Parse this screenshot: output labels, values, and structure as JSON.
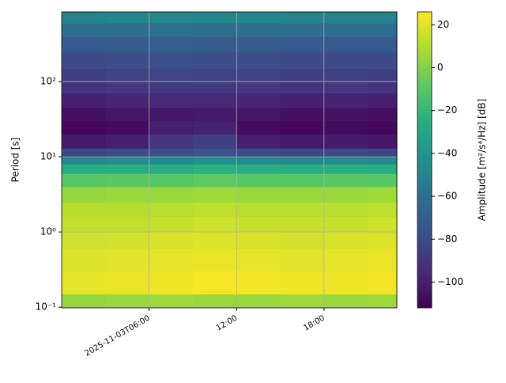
{
  "chart_data": {
    "type": "heatmap",
    "colormap": "viridis",
    "log_y": true,
    "grid": true,
    "ylabel": "Period [s]",
    "colorbar_label": "Amplitude [m²/s⁴/Hz] [dB]",
    "xlim": [
      0,
      23
    ],
    "xticks": [
      {
        "value": 6,
        "label": "2025-11-03T06:00"
      },
      {
        "value": 12,
        "label": "12:00"
      },
      {
        "value": 18,
        "label": "18:00"
      }
    ],
    "ylim": [
      0.098,
      845
    ],
    "yticks": [
      {
        "value": 0.1,
        "label": "10⁻¹"
      },
      {
        "value": 1,
        "label": "10⁰"
      },
      {
        "value": 10,
        "label": "10¹"
      },
      {
        "value": 100,
        "label": "10²"
      }
    ],
    "clim": [
      -112,
      26
    ],
    "cticks": [
      20,
      0,
      {
        "value": -20,
        "label": "−20"
      },
      {
        "value": -40,
        "label": "−40"
      },
      {
        "value": -60,
        "label": "−60"
      },
      {
        "value": -80,
        "label": "−80"
      },
      {
        "value": -100,
        "label": "−100"
      }
    ],
    "x": [
      0,
      3,
      6,
      9,
      12,
      15,
      18,
      21,
      23
    ],
    "y": [
      0.098,
      0.15,
      0.3,
      0.6,
      1,
      1.6,
      2.5,
      4,
      6,
      8,
      10,
      13,
      20,
      30,
      45,
      70,
      100,
      150,
      250,
      400,
      600,
      845
    ],
    "values": [
      [
        4,
        5,
        6,
        5,
        5,
        6,
        5,
        6
      ],
      [
        21,
        22,
        23,
        25,
        24,
        23,
        23,
        24
      ],
      [
        19,
        20,
        21,
        22,
        21,
        20,
        21,
        22
      ],
      [
        16,
        17,
        18,
        19,
        18,
        17,
        18,
        19
      ],
      [
        14,
        14,
        15,
        16,
        15,
        15,
        15,
        16
      ],
      [
        11,
        11,
        12,
        13,
        12,
        12,
        12,
        13
      ],
      [
        4,
        5,
        5,
        6,
        5,
        5,
        5,
        6
      ],
      [
        -10,
        -9,
        -10,
        -8,
        -10,
        -10,
        -9,
        -10
      ],
      [
        -26,
        -25,
        -26,
        -24,
        -25,
        -26,
        -25,
        -26
      ],
      [
        -46,
        -44,
        -45,
        -43,
        -45,
        -46,
        -45,
        -46
      ],
      [
        -82,
        -80,
        -78,
        -76,
        -80,
        -82,
        -81,
        -82
      ],
      [
        -102,
        -99,
        -90,
        -86,
        -100,
        -102,
        -101,
        -103
      ],
      [
        -109,
        -107,
        -100,
        -98,
        -107,
        -109,
        -108,
        -109
      ],
      [
        -106,
        -104,
        -103,
        -102,
        -104,
        -106,
        -105,
        -106
      ],
      [
        -99,
        -97,
        -96,
        -96,
        -97,
        -99,
        -98,
        -99
      ],
      [
        -91,
        -89,
        -88,
        -88,
        -89,
        -91,
        -90,
        -91
      ],
      [
        -86,
        -84,
        -83,
        -84,
        -84,
        -86,
        -85,
        -86
      ],
      [
        -80,
        -79,
        -78,
        -79,
        -79,
        -80,
        -80,
        -80
      ],
      [
        -72,
        -71,
        -70,
        -71,
        -71,
        -72,
        -72,
        -72
      ],
      [
        -62,
        -61,
        -60,
        -61,
        -61,
        -62,
        -62,
        -62
      ],
      [
        -50,
        -49,
        -48,
        -49,
        -49,
        -50,
        -50,
        -50
      ]
    ]
  }
}
